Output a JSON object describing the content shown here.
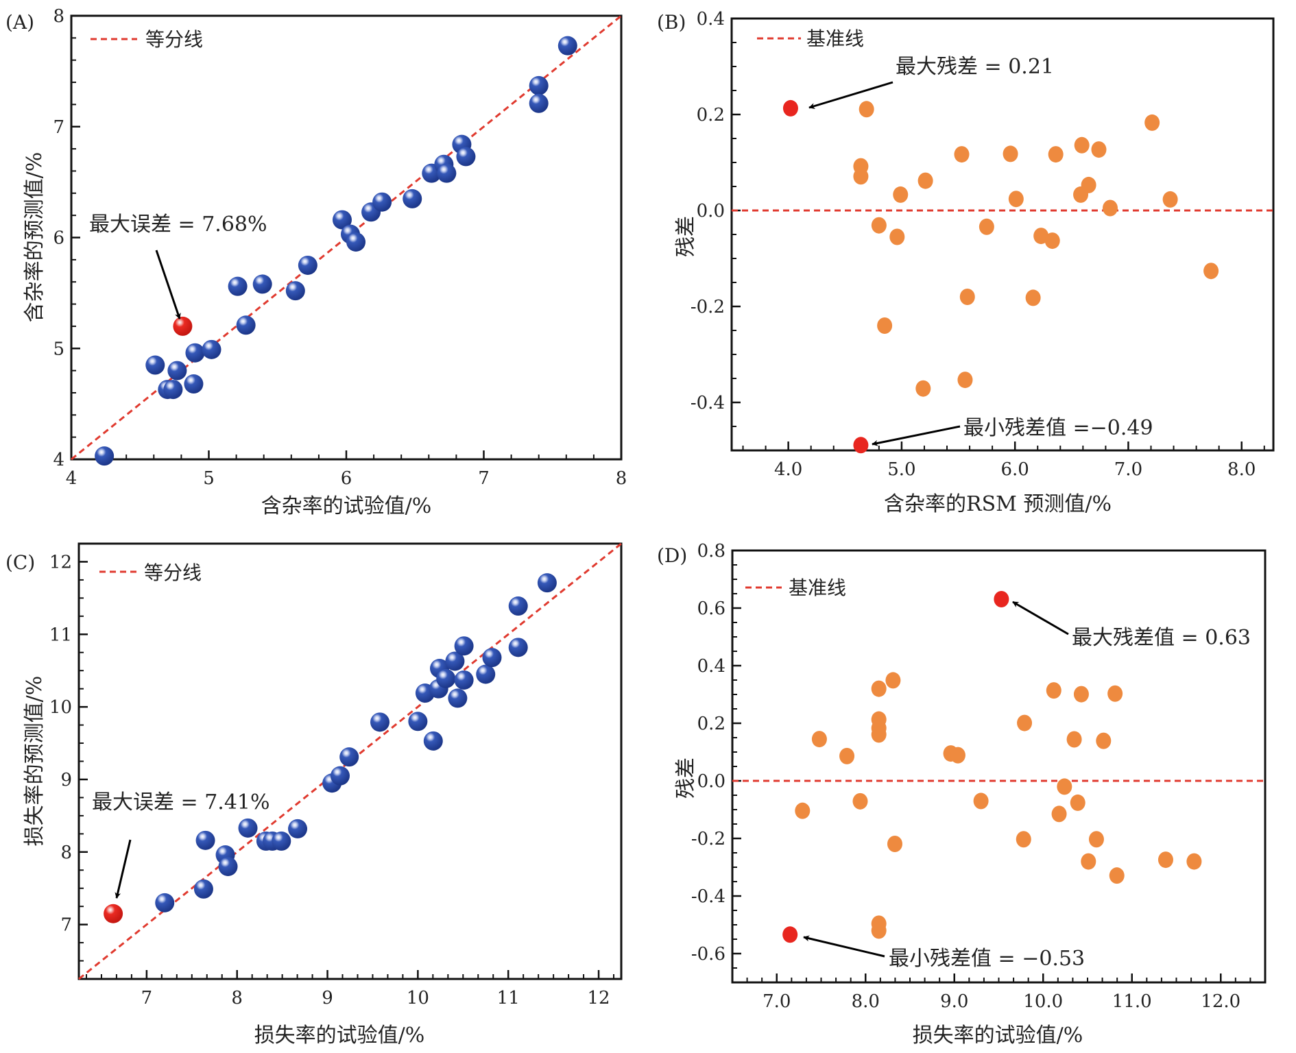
{
  "figure": {
    "colors": {
      "ref_line": "#e03a2f",
      "sphere_blue": "#2b4ba6",
      "sphere_red": "#e8261f",
      "residual_orange": "#ee8a3f",
      "residual_red": "#e8261f",
      "arrow": "#000000"
    }
  },
  "chart_data": [
    {
      "id": "A",
      "panel_label": "(A)",
      "type": "scatter",
      "title": "",
      "xlabel": "含杂率的试验值/%",
      "ylabel": "含杂率的预测值/%",
      "xlim": [
        4,
        8
      ],
      "ylim": [
        4,
        8
      ],
      "xticks": [
        4,
        5,
        6,
        7,
        8
      ],
      "yticks": [
        4,
        5,
        6,
        7,
        8
      ],
      "x_minor_step": 0.2,
      "y_minor_step": 0.2,
      "tick_decimals": 0,
      "marker": "sphere",
      "legend": {
        "label": "等分线",
        "position": "top-left"
      },
      "reference_line": {
        "type": "diagonal",
        "label": "等分线"
      },
      "annotation": {
        "text": "最大误差 = 7.68%",
        "target": [
          4.81,
          5.2
        ]
      },
      "series": [
        {
          "name": "points",
          "color": "sphere_blue",
          "points": [
            [
              4.24,
              4.03
            ],
            [
              4.61,
              4.85
            ],
            [
              4.7,
              4.63
            ],
            [
              4.74,
              4.63
            ],
            [
              4.77,
              4.8
            ],
            [
              4.89,
              4.68
            ],
            [
              4.9,
              4.96
            ],
            [
              5.02,
              4.99
            ],
            [
              5.27,
              5.21
            ],
            [
              5.21,
              5.56
            ],
            [
              5.39,
              5.58
            ],
            [
              5.63,
              5.52
            ],
            [
              5.72,
              5.75
            ],
            [
              5.97,
              6.16
            ],
            [
              6.03,
              6.03
            ],
            [
              6.07,
              5.96
            ],
            [
              6.18,
              6.23
            ],
            [
              6.26,
              6.32
            ],
            [
              6.48,
              6.35
            ],
            [
              6.62,
              6.58
            ],
            [
              6.71,
              6.66
            ],
            [
              6.73,
              6.58
            ],
            [
              6.84,
              6.84
            ],
            [
              6.87,
              6.73
            ],
            [
              7.4,
              7.37
            ],
            [
              7.4,
              7.21
            ],
            [
              7.61,
              7.73
            ]
          ]
        },
        {
          "name": "max-error",
          "color": "sphere_red",
          "points": [
            [
              4.81,
              5.2
            ]
          ]
        }
      ]
    },
    {
      "id": "B",
      "panel_label": "(B)",
      "type": "scatter",
      "title": "",
      "xlabel": "含杂率的RSM 预测值/%",
      "ylabel": "残差",
      "xlim": [
        3.5,
        8.28
      ],
      "ylim": [
        -0.5,
        0.4
      ],
      "xticks": [
        4,
        5,
        6,
        7,
        8
      ],
      "yticks": [
        -0.4,
        -0.2,
        0.0,
        0.2,
        0.4
      ],
      "x_minor_step": 0.2,
      "y_minor_step": 0.05,
      "tick_decimals": 1,
      "marker": "dot",
      "legend": {
        "label": "基准线",
        "position": "top-left"
      },
      "reference_line": {
        "type": "horizontal",
        "y": 0,
        "label": "基准线"
      },
      "annotations": [
        {
          "text": "最大残差 = 0.21",
          "target": [
            4.02,
            0.213
          ]
        },
        {
          "text": "最小残差值 =−0.49",
          "target": [
            4.64,
            -0.489
          ]
        }
      ],
      "series": [
        {
          "name": "residuals",
          "color": "residual_orange",
          "points": [
            [
              4.69,
              0.211
            ],
            [
              4.64,
              0.092
            ],
            [
              4.64,
              0.071
            ],
            [
              4.99,
              0.033
            ],
            [
              4.8,
              -0.031
            ],
            [
              4.96,
              -0.055
            ],
            [
              5.21,
              0.062
            ],
            [
              4.85,
              -0.24
            ],
            [
              5.19,
              -0.371
            ],
            [
              5.56,
              -0.353
            ],
            [
              5.53,
              0.117
            ],
            [
              5.58,
              -0.18
            ],
            [
              5.75,
              -0.034
            ],
            [
              5.96,
              0.118
            ],
            [
              6.01,
              0.024
            ],
            [
              6.16,
              -0.182
            ],
            [
              6.23,
              -0.053
            ],
            [
              6.33,
              -0.063
            ],
            [
              6.36,
              0.117
            ],
            [
              6.58,
              0.033
            ],
            [
              6.59,
              0.136
            ],
            [
              6.65,
              0.053
            ],
            [
              6.74,
              0.127
            ],
            [
              6.84,
              0.005
            ],
            [
              7.21,
              0.183
            ],
            [
              7.37,
              0.023
            ],
            [
              7.73,
              -0.126
            ]
          ]
        },
        {
          "name": "extremes",
          "color": "residual_red",
          "points": [
            [
              4.02,
              0.213
            ],
            [
              4.64,
              -0.489
            ]
          ]
        }
      ]
    },
    {
      "id": "C",
      "panel_label": "(C)",
      "type": "scatter",
      "title": "",
      "xlabel": "损失率的试验值/%",
      "ylabel": "损失率的预测值/%",
      "xlim": [
        6.25,
        12.25
      ],
      "ylim": [
        6.25,
        12.25
      ],
      "xticks": [
        7,
        8,
        9,
        10,
        11,
        12
      ],
      "yticks": [
        7,
        8,
        9,
        10,
        11,
        12
      ],
      "x_minor_step": 0.166667,
      "y_minor_step": 0.25,
      "tick_decimals": 0,
      "marker": "sphere",
      "legend": {
        "label": "等分线",
        "position": "top-left"
      },
      "reference_line": {
        "type": "diagonal",
        "label": "等分线"
      },
      "annotation": {
        "text": "最大误差  =  7.41%",
        "target": [
          6.63,
          7.15
        ]
      },
      "series": [
        {
          "name": "points",
          "color": "sphere_blue",
          "points": [
            [
              7.2,
              7.3
            ],
            [
              7.63,
              7.49
            ],
            [
              7.65,
              8.16
            ],
            [
              7.87,
              7.96
            ],
            [
              7.9,
              7.8
            ],
            [
              8.12,
              8.33
            ],
            [
              8.32,
              8.15
            ],
            [
              8.39,
              8.15
            ],
            [
              8.49,
              8.15
            ],
            [
              8.67,
              8.32
            ],
            [
              9.05,
              8.95
            ],
            [
              9.14,
              9.05
            ],
            [
              9.24,
              9.31
            ],
            [
              9.58,
              9.79
            ],
            [
              10.0,
              9.8
            ],
            [
              10.17,
              9.53
            ],
            [
              10.08,
              10.19
            ],
            [
              10.23,
              10.25
            ],
            [
              10.24,
              10.53
            ],
            [
              10.31,
              10.39
            ],
            [
              10.41,
              10.63
            ],
            [
              10.44,
              10.12
            ],
            [
              10.51,
              10.84
            ],
            [
              10.51,
              10.37
            ],
            [
              10.75,
              10.45
            ],
            [
              10.82,
              10.68
            ],
            [
              11.11,
              11.39
            ],
            [
              11.11,
              10.82
            ],
            [
              11.43,
              11.71
            ]
          ]
        },
        {
          "name": "max-error",
          "color": "sphere_red",
          "points": [
            [
              6.63,
              7.15
            ]
          ]
        }
      ]
    },
    {
      "id": "D",
      "panel_label": "(D)",
      "type": "scatter",
      "title": "",
      "xlabel": "损失率的试验值/%",
      "ylabel": "残差",
      "xlim": [
        6.5,
        12.5
      ],
      "ylim": [
        -0.7,
        0.8
      ],
      "xticks": [
        7,
        8,
        9,
        10,
        11,
        12
      ],
      "yticks": [
        -0.6,
        -0.4,
        -0.2,
        0.0,
        0.2,
        0.4,
        0.6,
        0.8
      ],
      "x_minor_step": 0.166667,
      "y_minor_step": 0.05,
      "tick_decimals": 1,
      "marker": "dot",
      "legend": {
        "label": "基准线",
        "position": "top-left"
      },
      "reference_line": {
        "type": "horizontal",
        "y": 0,
        "label": "基准线"
      },
      "annotations": [
        {
          "text": "最大残差值  = 0.63",
          "target": [
            9.53,
            0.631
          ]
        },
        {
          "text": "最小残差值  = −0.53",
          "target": [
            7.15,
            -0.534
          ]
        }
      ],
      "series": [
        {
          "name": "residuals",
          "color": "residual_orange",
          "points": [
            [
              7.29,
              -0.104
            ],
            [
              7.48,
              0.145
            ],
            [
              7.79,
              0.086
            ],
            [
              7.94,
              -0.071
            ],
            [
              8.15,
              0.32
            ],
            [
              8.15,
              0.213
            ],
            [
              8.15,
              0.183
            ],
            [
              8.15,
              0.161
            ],
            [
              8.15,
              -0.496
            ],
            [
              8.15,
              -0.52
            ],
            [
              8.31,
              0.349
            ],
            [
              8.33,
              -0.219
            ],
            [
              8.96,
              0.095
            ],
            [
              9.04,
              0.089
            ],
            [
              9.3,
              -0.07
            ],
            [
              9.79,
              0.201
            ],
            [
              9.78,
              -0.203
            ],
            [
              10.12,
              0.314
            ],
            [
              10.18,
              -0.115
            ],
            [
              10.24,
              -0.02
            ],
            [
              10.35,
              0.144
            ],
            [
              10.39,
              -0.076
            ],
            [
              10.43,
              0.301
            ],
            [
              10.51,
              -0.28
            ],
            [
              10.6,
              -0.203
            ],
            [
              10.68,
              0.139
            ],
            [
              10.81,
              0.303
            ],
            [
              10.83,
              -0.329
            ],
            [
              11.38,
              -0.274
            ],
            [
              11.7,
              -0.28
            ]
          ]
        },
        {
          "name": "extremes",
          "color": "residual_red",
          "points": [
            [
              9.53,
              0.631
            ],
            [
              7.15,
              -0.534
            ]
          ]
        }
      ]
    }
  ]
}
